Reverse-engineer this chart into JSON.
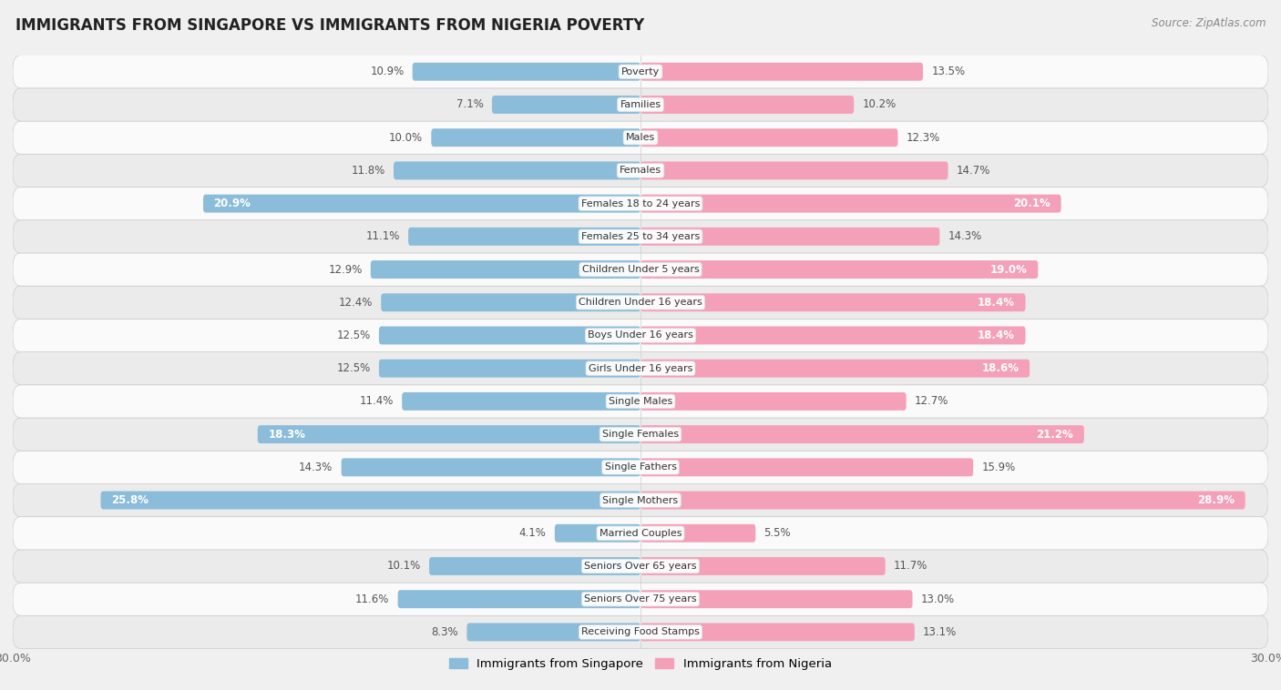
{
  "title": "IMMIGRANTS FROM SINGAPORE VS IMMIGRANTS FROM NIGERIA POVERTY",
  "source": "Source: ZipAtlas.com",
  "categories": [
    "Poverty",
    "Families",
    "Males",
    "Females",
    "Females 18 to 24 years",
    "Females 25 to 34 years",
    "Children Under 5 years",
    "Children Under 16 years",
    "Boys Under 16 years",
    "Girls Under 16 years",
    "Single Males",
    "Single Females",
    "Single Fathers",
    "Single Mothers",
    "Married Couples",
    "Seniors Over 65 years",
    "Seniors Over 75 years",
    "Receiving Food Stamps"
  ],
  "singapore_values": [
    10.9,
    7.1,
    10.0,
    11.8,
    20.9,
    11.1,
    12.9,
    12.4,
    12.5,
    12.5,
    11.4,
    18.3,
    14.3,
    25.8,
    4.1,
    10.1,
    11.6,
    8.3
  ],
  "nigeria_values": [
    13.5,
    10.2,
    12.3,
    14.7,
    20.1,
    14.3,
    19.0,
    18.4,
    18.4,
    18.6,
    12.7,
    21.2,
    15.9,
    28.9,
    5.5,
    11.7,
    13.0,
    13.1
  ],
  "singapore_color": "#8bbcda",
  "nigeria_color": "#f4a0b8",
  "singapore_highlight_indices": [
    4,
    11,
    13
  ],
  "nigeria_highlight_indices": [
    4,
    6,
    7,
    8,
    9,
    11,
    13
  ],
  "bg_color": "#f0f0f0",
  "row_color_light": "#fafafa",
  "row_color_dark": "#ebebeb",
  "axis_limit": 30.0,
  "legend_singapore": "Immigrants from Singapore",
  "legend_nigeria": "Immigrants from Nigeria",
  "bar_height": 0.55
}
